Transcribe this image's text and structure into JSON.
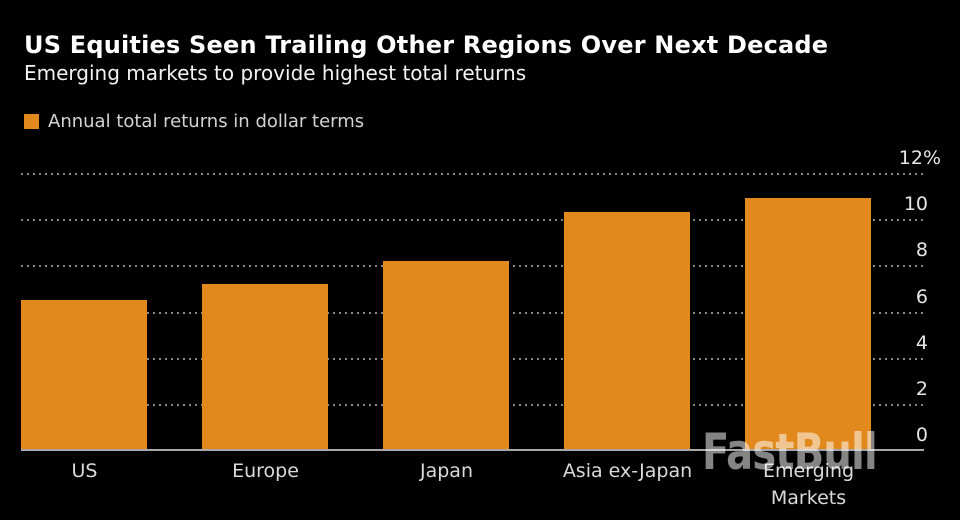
{
  "header": {
    "title": "US Equities Seen Trailing Other Regions Over Next Decade",
    "subtitle": "Emerging markets to provide highest total returns"
  },
  "legend": {
    "label": "Annual total returns in dollar terms"
  },
  "watermark": "FastBull",
  "colors": {
    "background": "#000000",
    "bar": "#E2891D",
    "gridline": "#848484",
    "baseline": "#A8A8A8",
    "title_text": "#FFFFFF",
    "subtitle_text": "#F2F2F2",
    "legend_text": "#D3D3D3",
    "axis_text": "#E6E6E6",
    "category_text": "#DADADA",
    "watermark_text": "rgba(255,255,255,0.52)"
  },
  "chart_data": {
    "type": "bar",
    "title": "US Equities Seen Trailing Other Regions Over Next Decade",
    "subtitle": "Emerging markets to provide highest total returns",
    "series_label": "Annual total returns in dollar terms",
    "categories": [
      "US",
      "Europe",
      "Japan",
      "Asia ex-Japan",
      "Emerging\nMarkets"
    ],
    "values": [
      6.5,
      7.2,
      8.2,
      10.3,
      10.9
    ],
    "unit": "%",
    "xlabel": "",
    "ylabel": "Annual total returns in dollar terms",
    "ylim": [
      0,
      12
    ],
    "yticks": [
      {
        "value": 12,
        "label": "12%"
      },
      {
        "value": 10,
        "label": "10"
      },
      {
        "value": 8,
        "label": "8"
      },
      {
        "value": 6,
        "label": "6"
      },
      {
        "value": 4,
        "label": "4"
      },
      {
        "value": 2,
        "label": "2"
      },
      {
        "value": 0,
        "label": "0"
      }
    ],
    "grid": "horizontal-dotted",
    "legend_position": "top-left",
    "y_axis_side": "right",
    "bar_color": "#E2891D",
    "background_color": "#000000"
  }
}
